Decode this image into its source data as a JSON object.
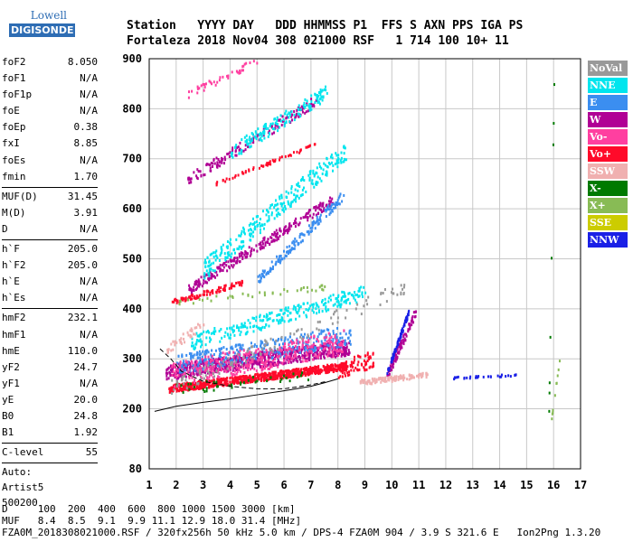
{
  "logo": {
    "line1": "Lowell",
    "line2": "DIGISONDE"
  },
  "header": {
    "row1": "Station   YYYY DAY   DDD HHMMSS P1  FFS S AXN PPS IGA PS",
    "row2": "Fortaleza 2018 Nov04 308 021000 RSF   1 714 100 10+ 11"
  },
  "params_group1": [
    {
      "label": "foF2",
      "value": "8.050"
    },
    {
      "label": "foF1",
      "value": "N/A"
    },
    {
      "label": "foF1p",
      "value": "N/A"
    },
    {
      "label": "foE",
      "value": "N/A"
    },
    {
      "label": "foEp",
      "value": "0.38"
    },
    {
      "label": "fxI",
      "value": "8.85"
    },
    {
      "label": "foEs",
      "value": "N/A"
    },
    {
      "label": "fmin",
      "value": "1.70"
    }
  ],
  "params_group2": [
    {
      "label": "MUF(D)",
      "value": "31.45"
    },
    {
      "label": "M(D)",
      "value": "3.91"
    },
    {
      "label": "D",
      "value": "N/A"
    }
  ],
  "params_group3": [
    {
      "label": "h`F",
      "value": "205.0"
    },
    {
      "label": "h`F2",
      "value": "205.0"
    },
    {
      "label": "h`E",
      "value": "N/A"
    },
    {
      "label": "h`Es",
      "value": "N/A"
    }
  ],
  "params_group4": [
    {
      "label": "hmF2",
      "value": "232.1"
    },
    {
      "label": "hmF1",
      "value": "N/A"
    },
    {
      "label": "hmE",
      "value": "110.0"
    },
    {
      "label": "yF2",
      "value": "24.7"
    },
    {
      "label": "yF1",
      "value": "N/A"
    },
    {
      "label": "yE",
      "value": "20.0"
    },
    {
      "label": "B0",
      "value": "24.8"
    },
    {
      "label": "B1",
      "value": "1.92"
    }
  ],
  "params_group5": [
    {
      "label": "C-level",
      "value": "55"
    }
  ],
  "auto_info": {
    "line1": "Auto:",
    "line2": "Artist5",
    "line3": "500200"
  },
  "legend": [
    {
      "label": "NoVal",
      "color": "#999999"
    },
    {
      "label": "NNE",
      "color": "#00e5ee"
    },
    {
      "label": "E",
      "color": "#3b8ef0"
    },
    {
      "label": "W",
      "color": "#b00095"
    },
    {
      "label": "Vo-",
      "color": "#ff3fa0"
    },
    {
      "label": "Vo+",
      "color": "#ff0a2a"
    },
    {
      "label": "SSW",
      "color": "#f0b0b0"
    },
    {
      "label": "X-",
      "color": "#007a00"
    },
    {
      "label": "X+",
      "color": "#88bb55"
    },
    {
      "label": "SSE",
      "color": "#cccc00"
    },
    {
      "label": "NNW",
      "color": "#1a20e6"
    }
  ],
  "footer": {
    "line1": "D     100  200  400  600  800 1000 1500 3000 [km]",
    "line2": "MUF   8.4  8.5  9.1  9.9 11.1 12.9 18.0 31.4 [MHz]",
    "line3": "FZA0M_2018308021000.RSF / 320fx256h 50 kHz 5.0 km / DPS-4 FZA0M 904 / 3.9 S 321.6 E   Ion2Png 1.3.20"
  },
  "chart_data": {
    "type": "scatter",
    "xlim": [
      1,
      17
    ],
    "ylim": [
      80,
      900
    ],
    "x_ticks": [
      1,
      2,
      3,
      4,
      5,
      6,
      7,
      8,
      9,
      10,
      11,
      12,
      13,
      14,
      15,
      16,
      17
    ],
    "y_ticks": [
      80,
      200,
      300,
      400,
      500,
      600,
      700,
      800,
      900
    ],
    "grid": true,
    "legend_placement": "right",
    "trace": {
      "x": [
        1.2,
        2.0,
        3.0,
        4.0,
        5.0,
        6.0,
        7.0,
        7.5,
        8.0
      ],
      "y": [
        195,
        205,
        213,
        220,
        228,
        236,
        245,
        252,
        260
      ]
    },
    "profile": {
      "x": [
        1.4,
        1.8,
        2.2,
        3.0,
        4.0,
        5.0,
        6.0,
        7.0,
        7.6
      ],
      "y": [
        320,
        300,
        275,
        255,
        245,
        240,
        240,
        248,
        255
      ]
    },
    "series": [
      {
        "color": "#ff0a2a",
        "regions": [
          {
            "x0": 1.7,
            "x1": 8.3,
            "yb0": 225,
            "yb1": 270,
            "t0": 10,
            "t1": 25,
            "n": 800
          },
          {
            "x0": 1.8,
            "x1": 4.5,
            "yb0": 400,
            "yb1": 440,
            "t0": 10,
            "t1": 20,
            "n": 90
          },
          {
            "x0": 3.4,
            "x1": 7.2,
            "yb0": 640,
            "yb1": 720,
            "t0": 8,
            "t1": 15,
            "n": 60
          },
          {
            "x0": 8.0,
            "x1": 9.3,
            "yb0": 255,
            "yb1": 280,
            "t0": 5,
            "t1": 40,
            "n": 80
          }
        ]
      },
      {
        "color": "#b00095",
        "regions": [
          {
            "x0": 1.6,
            "x1": 8.4,
            "yb0": 240,
            "yb1": 290,
            "t0": 20,
            "t1": 50,
            "n": 700
          },
          {
            "x0": 2.4,
            "x1": 7.8,
            "yb0": 420,
            "yb1": 600,
            "t0": 10,
            "t1": 30,
            "n": 260
          },
          {
            "x0": 2.4,
            "x1": 7.2,
            "yb0": 640,
            "yb1": 800,
            "t0": 8,
            "t1": 30,
            "n": 160
          },
          {
            "x0": 9.8,
            "x1": 10.9,
            "yb0": 260,
            "yb1": 390,
            "t0": 0,
            "t1": 20,
            "n": 90
          }
        ]
      },
      {
        "color": "#00e5ee",
        "regions": [
          {
            "x0": 2.5,
            "x1": 9.0,
            "yb0": 320,
            "yb1": 420,
            "t0": 0,
            "t1": 30,
            "n": 260
          },
          {
            "x0": 3.0,
            "x1": 8.3,
            "yb0": 460,
            "yb1": 700,
            "t0": 0,
            "t1": 40,
            "n": 280
          },
          {
            "x0": 4.0,
            "x1": 7.6,
            "yb0": 700,
            "yb1": 820,
            "t0": 0,
            "t1": 30,
            "n": 150
          }
        ]
      },
      {
        "color": "#3b8ef0",
        "regions": [
          {
            "x0": 2.0,
            "x1": 8.5,
            "yb0": 250,
            "yb1": 310,
            "t0": 20,
            "t1": 60,
            "n": 350
          },
          {
            "x0": 5.0,
            "x1": 8.2,
            "yb0": 450,
            "yb1": 620,
            "t0": 0,
            "t1": 20,
            "n": 150
          }
        ]
      },
      {
        "color": "#ff3fa0",
        "regions": [
          {
            "x0": 1.8,
            "x1": 8.2,
            "yb0": 235,
            "yb1": 300,
            "t0": 10,
            "t1": 60,
            "n": 350
          },
          {
            "x0": 2.3,
            "x1": 5.0,
            "yb0": 820,
            "yb1": 890,
            "t0": 0,
            "t1": 15,
            "n": 40
          }
        ]
      },
      {
        "color": "#1a20e6",
        "regions": [
          {
            "x0": 9.8,
            "x1": 10.6,
            "yb0": 270,
            "yb1": 390,
            "t0": 0,
            "t1": 10,
            "n": 90
          },
          {
            "x0": 12.2,
            "x1": 14.6,
            "yb0": 262,
            "yb1": 268,
            "t0": 0,
            "t1": 4,
            "n": 30
          }
        ]
      },
      {
        "color": "#f0b0b0",
        "regions": [
          {
            "x0": 8.8,
            "x1": 11.3,
            "yb0": 250,
            "yb1": 265,
            "t0": 0,
            "t1": 10,
            "n": 120
          },
          {
            "x0": 1.6,
            "x1": 3.0,
            "yb0": 310,
            "yb1": 360,
            "t0": 0,
            "t1": 20,
            "n": 40
          }
        ]
      },
      {
        "color": "#88bb55",
        "regions": [
          {
            "x0": 2.0,
            "x1": 7.5,
            "yb0": 410,
            "yb1": 440,
            "t0": 0,
            "t1": 10,
            "n": 40
          },
          {
            "x0": 15.9,
            "x1": 16.2,
            "yb0": 180,
            "yb1": 300,
            "t0": 0,
            "t1": 5,
            "n": 10
          }
        ]
      },
      {
        "color": "#007a00",
        "regions": [
          {
            "x0": 1.8,
            "x1": 7.0,
            "yb0": 230,
            "yb1": 260,
            "t0": 0,
            "t1": 20,
            "n": 40
          },
          {
            "x0": 15.8,
            "x1": 16.0,
            "yb0": 180,
            "yb1": 870,
            "t0": 0,
            "t1": 4,
            "n": 8
          }
        ]
      },
      {
        "color": "#999999",
        "regions": [
          {
            "x0": 1.8,
            "x1": 10.5,
            "yb0": 230,
            "yb1": 430,
            "t0": 0,
            "t1": 30,
            "n": 120
          }
        ]
      }
    ]
  }
}
